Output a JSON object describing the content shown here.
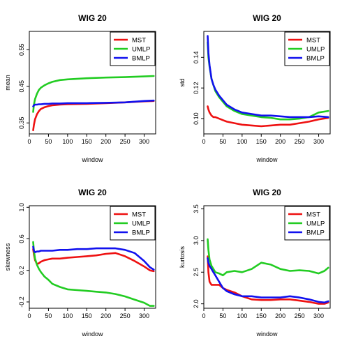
{
  "legend_entries": [
    {
      "name": "MST",
      "color": "#ee1111"
    },
    {
      "name": "UMLP",
      "color": "#22cc22"
    },
    {
      "name": "BMLP",
      "color": "#1111ee"
    }
  ],
  "chart_data": [
    {
      "type": "line",
      "title": "WIG 20",
      "xlabel": "window",
      "ylabel": "mean",
      "xlim": [
        0,
        330
      ],
      "ylim": [
        0.32,
        0.6
      ],
      "xticks": [
        "0",
        "50",
        "100",
        "150",
        "200",
        "250",
        "300"
      ],
      "yticks": [
        "0.35",
        "0.45",
        "0.55"
      ],
      "ytick_values": [
        0.35,
        0.45,
        0.55
      ],
      "legend": "top-right",
      "x": [
        10,
        12,
        15,
        20,
        25,
        30,
        40,
        50,
        60,
        80,
        100,
        150,
        200,
        250,
        300,
        325
      ],
      "series": [
        {
          "name": "MST",
          "color": "#ee1111",
          "values": [
            0.33,
            0.345,
            0.36,
            0.374,
            0.382,
            0.388,
            0.393,
            0.396,
            0.398,
            0.4,
            0.401,
            0.402,
            0.404,
            0.406,
            0.409,
            0.41
          ]
        },
        {
          "name": "UMLP",
          "color": "#22cc22",
          "values": [
            0.38,
            0.4,
            0.415,
            0.43,
            0.44,
            0.446,
            0.453,
            0.458,
            0.462,
            0.467,
            0.469,
            0.472,
            0.474,
            0.475,
            0.477,
            0.478
          ]
        },
        {
          "name": "BMLP",
          "color": "#1111ee",
          "values": [
            0.395,
            0.398,
            0.4,
            0.4,
            0.401,
            0.401,
            0.402,
            0.402,
            0.403,
            0.403,
            0.404,
            0.404,
            0.405,
            0.406,
            0.41,
            0.411
          ]
        }
      ]
    },
    {
      "type": "line",
      "title": "WIG 20",
      "xlabel": "window",
      "ylabel": "std",
      "xlim": [
        0,
        330
      ],
      "ylim": [
        0.09,
        0.157
      ],
      "xticks": [
        "0",
        "50",
        "100",
        "150",
        "200",
        "250",
        "300"
      ],
      "yticks": [
        "0.10",
        "0.12",
        "0.14"
      ],
      "ytick_values": [
        0.1,
        0.12,
        0.14
      ],
      "legend": "top-right",
      "x": [
        10,
        12,
        15,
        20,
        25,
        30,
        40,
        50,
        60,
        80,
        100,
        125,
        150,
        175,
        200,
        225,
        250,
        275,
        300,
        325
      ],
      "series": [
        {
          "name": "MST",
          "color": "#ee1111",
          "values": [
            0.108,
            0.106,
            0.104,
            0.102,
            0.101,
            0.101,
            0.1,
            0.099,
            0.098,
            0.097,
            0.096,
            0.0955,
            0.095,
            0.0955,
            0.096,
            0.096,
            0.097,
            0.098,
            0.0995,
            0.1005
          ]
        },
        {
          "name": "UMLP",
          "color": "#22cc22",
          "values": [
            0.15,
            0.14,
            0.134,
            0.126,
            0.122,
            0.118,
            0.114,
            0.111,
            0.108,
            0.105,
            0.103,
            0.102,
            0.101,
            0.1005,
            0.0995,
            0.0995,
            0.1,
            0.101,
            0.104,
            0.105
          ]
        },
        {
          "name": "BMLP",
          "color": "#1111ee",
          "values": [
            0.154,
            0.143,
            0.135,
            0.126,
            0.122,
            0.119,
            0.115,
            0.112,
            0.109,
            0.106,
            0.104,
            0.103,
            0.102,
            0.102,
            0.1015,
            0.101,
            0.101,
            0.101,
            0.1015,
            0.101
          ]
        }
      ]
    },
    {
      "type": "line",
      "title": "WIG 20",
      "xlabel": "window",
      "ylabel": "skewness",
      "xlim": [
        0,
        330
      ],
      "ylim": [
        -0.28,
        1.02
      ],
      "xticks": [
        "0",
        "50",
        "100",
        "150",
        "200",
        "250",
        "300"
      ],
      "yticks": [
        "-0.2",
        "0.2",
        "0.6",
        "1.0"
      ],
      "ytick_values": [
        -0.2,
        0.2,
        0.6,
        1.0
      ],
      "legend": "top-right",
      "x": [
        10,
        12,
        15,
        20,
        25,
        30,
        40,
        50,
        60,
        80,
        100,
        125,
        150,
        175,
        200,
        225,
        250,
        275,
        300,
        315,
        325
      ],
      "series": [
        {
          "name": "MST",
          "color": "#ee1111",
          "values": [
            0.47,
            0.4,
            0.33,
            0.28,
            0.29,
            0.31,
            0.33,
            0.34,
            0.35,
            0.35,
            0.36,
            0.37,
            0.38,
            0.39,
            0.41,
            0.42,
            0.38,
            0.32,
            0.25,
            0.2,
            0.19
          ]
        },
        {
          "name": "UMLP",
          "color": "#22cc22",
          "values": [
            0.56,
            0.45,
            0.35,
            0.27,
            0.22,
            0.18,
            0.12,
            0.08,
            0.03,
            -0.01,
            -0.04,
            -0.05,
            -0.06,
            -0.07,
            -0.08,
            -0.1,
            -0.13,
            -0.17,
            -0.21,
            -0.25,
            -0.25
          ]
        },
        {
          "name": "BMLP",
          "color": "#1111ee",
          "values": [
            0.5,
            0.45,
            0.43,
            0.44,
            0.44,
            0.45,
            0.45,
            0.45,
            0.45,
            0.46,
            0.46,
            0.47,
            0.47,
            0.48,
            0.48,
            0.48,
            0.46,
            0.42,
            0.32,
            0.24,
            0.21
          ]
        }
      ]
    },
    {
      "type": "line",
      "title": "WIG 20",
      "xlabel": "window",
      "ylabel": "kurtosis",
      "xlim": [
        0,
        330
      ],
      "ylim": [
        1.93,
        3.55
      ],
      "xticks": [
        "0",
        "50",
        "100",
        "150",
        "200",
        "250",
        "300"
      ],
      "yticks": [
        "2.0",
        "2.5",
        "3.0",
        "3.5"
      ],
      "ytick_values": [
        2.0,
        2.5,
        3.0,
        3.5
      ],
      "legend": "top-right",
      "x": [
        10,
        12,
        15,
        20,
        25,
        30,
        40,
        50,
        60,
        80,
        100,
        125,
        150,
        175,
        200,
        225,
        250,
        275,
        300,
        315,
        325
      ],
      "series": [
        {
          "name": "MST",
          "color": "#ee1111",
          "values": [
            2.75,
            2.5,
            2.35,
            2.3,
            2.3,
            2.3,
            2.3,
            2.25,
            2.22,
            2.18,
            2.12,
            2.07,
            2.06,
            2.06,
            2.07,
            2.07,
            2.05,
            2.03,
            2.0,
            2.0,
            2.02
          ]
        },
        {
          "name": "UMLP",
          "color": "#22cc22",
          "values": [
            3.02,
            2.85,
            2.7,
            2.6,
            2.55,
            2.5,
            2.48,
            2.45,
            2.5,
            2.52,
            2.5,
            2.55,
            2.65,
            2.62,
            2.55,
            2.52,
            2.53,
            2.52,
            2.48,
            2.52,
            2.57
          ]
        },
        {
          "name": "BMLP",
          "color": "#1111ee",
          "values": [
            2.72,
            2.65,
            2.6,
            2.55,
            2.5,
            2.45,
            2.35,
            2.25,
            2.2,
            2.15,
            2.12,
            2.12,
            2.1,
            2.1,
            2.1,
            2.12,
            2.1,
            2.07,
            2.03,
            2.02,
            2.04
          ]
        }
      ]
    }
  ]
}
